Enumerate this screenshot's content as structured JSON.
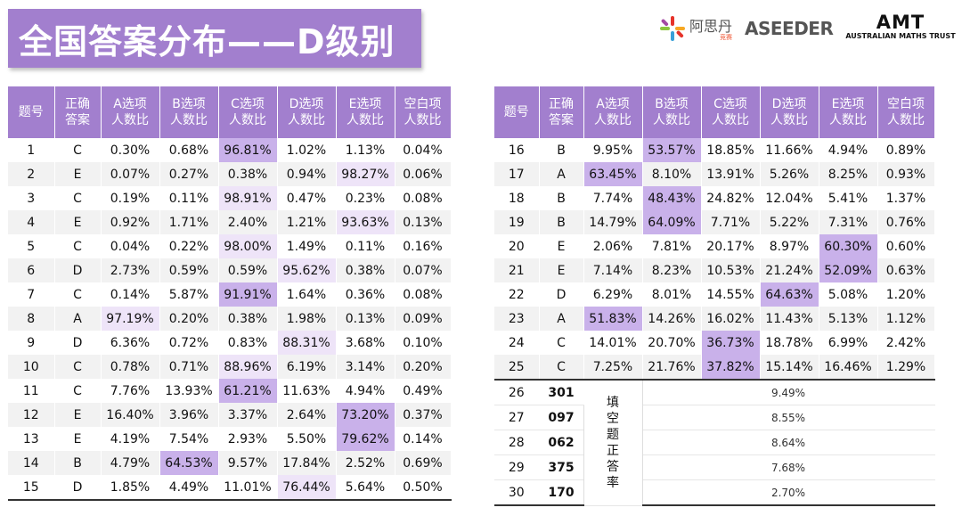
{
  "title": "全国答案分布——D级别",
  "logos": {
    "aseeder_cn": "阿思丹",
    "aseeder_cn_sub": "竞赛",
    "aseeder_en": "ASEEDER",
    "amt_short": "AMT",
    "amt_full": "AUSTRALIAN MATHS TRUST"
  },
  "headers": [
    [
      "题号"
    ],
    [
      "正确",
      "答案"
    ],
    [
      "A选项",
      "人数比"
    ],
    [
      "B选项",
      "人数比"
    ],
    [
      "C选项",
      "人数比"
    ],
    [
      "D选项",
      "人数比"
    ],
    [
      "E选项",
      "人数比"
    ],
    [
      "空白项",
      "人数比"
    ]
  ],
  "left_rows": [
    {
      "n": "1",
      "ans": "C",
      "a": "0.30%",
      "b": "0.68%",
      "c": "96.81%",
      "d": "1.02%",
      "e": "1.13%",
      "blank": "0.04%"
    },
    {
      "n": "2",
      "ans": "E",
      "a": "0.07%",
      "b": "0.27%",
      "c": "0.38%",
      "d": "0.94%",
      "e": "98.27%",
      "blank": "0.06%"
    },
    {
      "n": "3",
      "ans": "C",
      "a": "0.19%",
      "b": "0.11%",
      "c": "98.91%",
      "d": "0.47%",
      "e": "0.23%",
      "blank": "0.08%"
    },
    {
      "n": "4",
      "ans": "E",
      "a": "0.92%",
      "b": "1.71%",
      "c": "2.40%",
      "d": "1.21%",
      "e": "93.63%",
      "blank": "0.13%"
    },
    {
      "n": "5",
      "ans": "C",
      "a": "0.04%",
      "b": "0.22%",
      "c": "98.00%",
      "d": "1.49%",
      "e": "0.11%",
      "blank": "0.16%"
    },
    {
      "n": "6",
      "ans": "D",
      "a": "2.73%",
      "b": "0.59%",
      "c": "0.59%",
      "d": "95.62%",
      "e": "0.38%",
      "blank": "0.07%"
    },
    {
      "n": "7",
      "ans": "C",
      "a": "0.14%",
      "b": "5.87%",
      "c": "91.91%",
      "d": "1.64%",
      "e": "0.36%",
      "blank": "0.08%"
    },
    {
      "n": "8",
      "ans": "A",
      "a": "97.19%",
      "b": "0.20%",
      "c": "0.38%",
      "d": "1.98%",
      "e": "0.13%",
      "blank": "0.09%"
    },
    {
      "n": "9",
      "ans": "D",
      "a": "6.36%",
      "b": "0.72%",
      "c": "0.83%",
      "d": "88.31%",
      "e": "3.68%",
      "blank": "0.10%"
    },
    {
      "n": "10",
      "ans": "C",
      "a": "0.78%",
      "b": "0.71%",
      "c": "88.96%",
      "d": "6.19%",
      "e": "3.14%",
      "blank": "0.20%"
    },
    {
      "n": "11",
      "ans": "C",
      "a": "7.76%",
      "b": "13.93%",
      "c": "61.21%",
      "d": "11.63%",
      "e": "4.94%",
      "blank": "0.49%"
    },
    {
      "n": "12",
      "ans": "E",
      "a": "16.40%",
      "b": "3.96%",
      "c": "3.37%",
      "d": "2.64%",
      "e": "73.20%",
      "blank": "0.37%"
    },
    {
      "n": "13",
      "ans": "E",
      "a": "4.19%",
      "b": "7.54%",
      "c": "2.93%",
      "d": "5.50%",
      "e": "79.62%",
      "blank": "0.14%"
    },
    {
      "n": "14",
      "ans": "B",
      "a": "4.79%",
      "b": "64.53%",
      "c": "9.57%",
      "d": "17.84%",
      "e": "2.52%",
      "blank": "0.69%"
    },
    {
      "n": "15",
      "ans": "D",
      "a": "1.85%",
      "b": "4.49%",
      "c": "11.01%",
      "d": "76.44%",
      "e": "5.64%",
      "blank": "0.50%"
    }
  ],
  "right_rows": [
    {
      "n": "16",
      "ans": "B",
      "a": "9.95%",
      "b": "53.57%",
      "c": "18.85%",
      "d": "11.66%",
      "e": "4.94%",
      "blank": "0.89%"
    },
    {
      "n": "17",
      "ans": "A",
      "a": "63.45%",
      "b": "8.10%",
      "c": "13.91%",
      "d": "5.26%",
      "e": "8.25%",
      "blank": "0.93%"
    },
    {
      "n": "18",
      "ans": "B",
      "a": "7.74%",
      "b": "48.43%",
      "c": "24.82%",
      "d": "12.04%",
      "e": "5.41%",
      "blank": "1.37%"
    },
    {
      "n": "19",
      "ans": "B",
      "a": "14.79%",
      "b": "64.09%",
      "c": "7.71%",
      "d": "5.22%",
      "e": "7.31%",
      "blank": "0.76%"
    },
    {
      "n": "20",
      "ans": "E",
      "a": "2.06%",
      "b": "7.81%",
      "c": "20.17%",
      "d": "8.97%",
      "e": "60.30%",
      "blank": "0.60%"
    },
    {
      "n": "21",
      "ans": "E",
      "a": "7.14%",
      "b": "8.23%",
      "c": "10.53%",
      "d": "21.24%",
      "e": "52.09%",
      "blank": "0.63%"
    },
    {
      "n": "22",
      "ans": "D",
      "a": "6.29%",
      "b": "8.01%",
      "c": "14.55%",
      "d": "64.63%",
      "e": "5.08%",
      "blank": "1.20%"
    },
    {
      "n": "23",
      "ans": "A",
      "a": "51.83%",
      "b": "14.26%",
      "c": "16.02%",
      "d": "11.43%",
      "e": "5.13%",
      "blank": "1.12%"
    },
    {
      "n": "24",
      "ans": "C",
      "a": "14.01%",
      "b": "20.70%",
      "c": "36.73%",
      "d": "18.78%",
      "e": "6.99%",
      "blank": "2.42%"
    },
    {
      "n": "25",
      "ans": "C",
      "a": "7.25%",
      "b": "21.76%",
      "c": "37.82%",
      "d": "15.14%",
      "e": "16.46%",
      "blank": "1.29%"
    }
  ],
  "fill_label": [
    "填",
    "空",
    "题",
    "正",
    "答",
    "率"
  ],
  "fill_rows": [
    {
      "n": "26",
      "code": "301",
      "rate": "9.49%"
    },
    {
      "n": "27",
      "code": "097",
      "rate": "8.55%"
    },
    {
      "n": "28",
      "code": "062",
      "rate": "8.64%"
    },
    {
      "n": "29",
      "code": "375",
      "rate": "7.68%"
    },
    {
      "n": "30",
      "code": "170",
      "rate": "2.70%"
    }
  ],
  "colors": {
    "header": "#a27fce",
    "highlight": "#c9b1ea",
    "highlight_light": "#eee4f8"
  }
}
